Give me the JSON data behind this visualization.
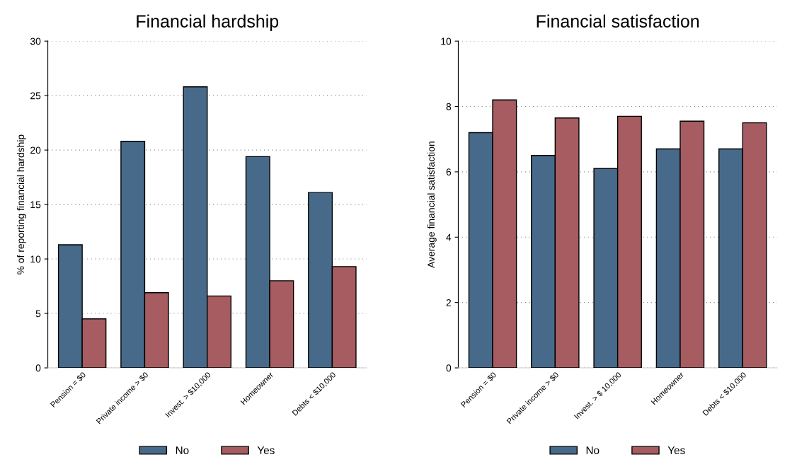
{
  "chart_data": [
    {
      "type": "bar",
      "title": "Financial hardship",
      "ylabel": "% of reporting financial hardship",
      "categories": [
        "Pension = $0",
        "Private income > $0",
        "Invest. > $10,000",
        "Homeowner",
        "Debts < $10,000"
      ],
      "series": [
        {
          "name": "No",
          "color": "#476a8a",
          "values": [
            11.3,
            20.8,
            25.8,
            19.4,
            16.1
          ]
        },
        {
          "name": "Yes",
          "color": "#a65c60",
          "values": [
            4.5,
            6.9,
            6.6,
            8.0,
            9.3
          ]
        }
      ],
      "ylim": [
        0,
        30
      ],
      "yticks": [
        0,
        5,
        10,
        15,
        20,
        25,
        30
      ],
      "grid": "y",
      "legend": "bottom"
    },
    {
      "type": "bar",
      "title": "Financial satisfaction",
      "ylabel": "Average financial satisfaction",
      "categories": [
        "Pension = $0",
        "Private income > $0",
        "Invest. > $ 10,000",
        "Homeowner",
        "Debts < $10,000"
      ],
      "series": [
        {
          "name": "No",
          "color": "#476a8a",
          "values": [
            7.2,
            6.5,
            6.1,
            6.7,
            6.7
          ]
        },
        {
          "name": "Yes",
          "color": "#a65c60",
          "values": [
            8.2,
            7.65,
            7.7,
            7.55,
            7.5
          ]
        }
      ],
      "ylim": [
        0,
        10
      ],
      "yticks": [
        0,
        2,
        4,
        6,
        8,
        10
      ],
      "grid": "y",
      "legend": "bottom"
    }
  ]
}
